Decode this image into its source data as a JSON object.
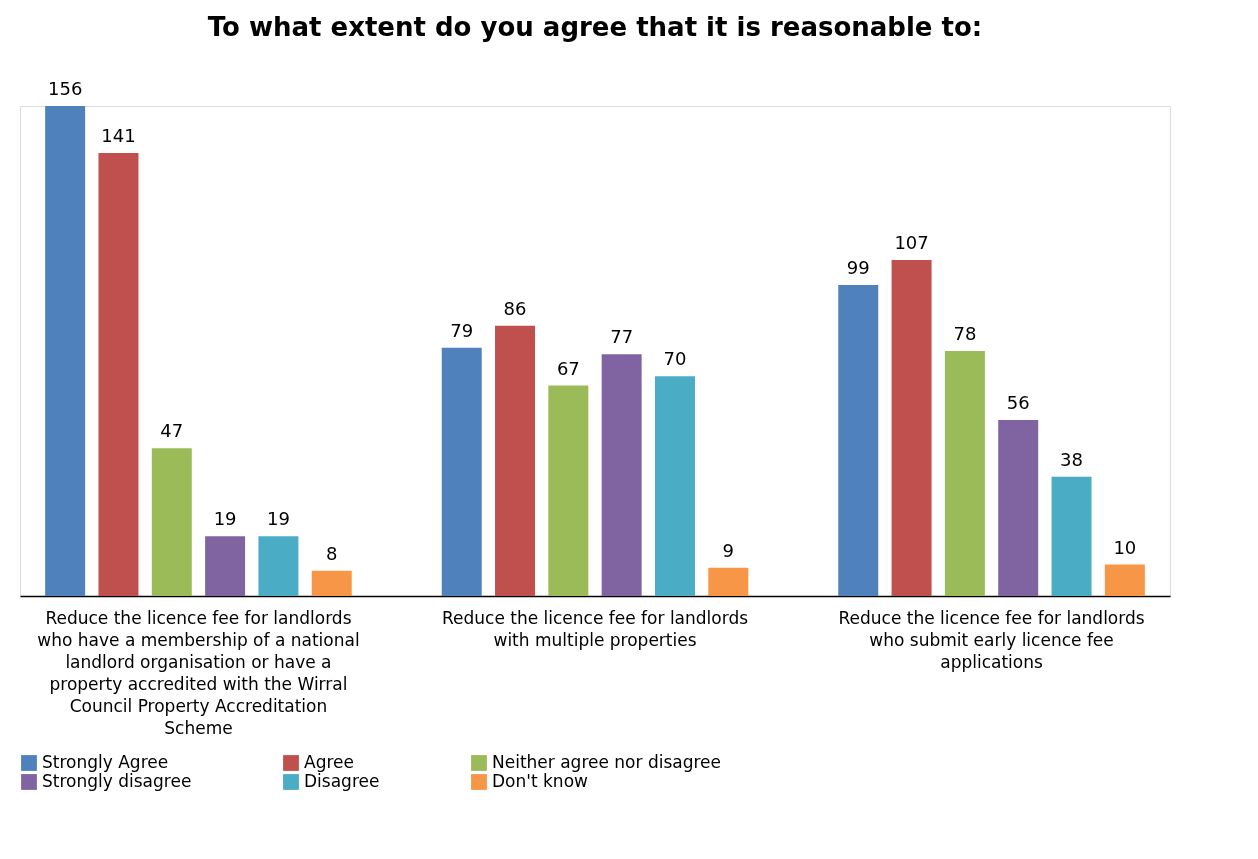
{
  "chart_data": {
    "type": "bar",
    "title": "To what extent do you agree that it is reasonable to:",
    "categories": [
      "Reduce the licence fee for landlords who have a membership of a national landlord organisation or have a property accredited with the Wirral Council Property Accreditation Scheme",
      "Reduce the licence fee for landlords with multiple properties",
      "Reduce the licence fee for landlords who submit early licence fee applications"
    ],
    "series": [
      {
        "name": "Strongly Agree",
        "color": "#4f81bd",
        "values": [
          156,
          79,
          99
        ]
      },
      {
        "name": "Agree",
        "color": "#c0504d",
        "values": [
          141,
          86,
          107
        ]
      },
      {
        "name": "Neither agree nor disagree",
        "color": "#9bbb59",
        "values": [
          47,
          67,
          78
        ]
      },
      {
        "name": "Strongly disagree",
        "color": "#8064a2",
        "values": [
          19,
          77,
          56
        ]
      },
      {
        "name": "Disagree",
        "color": "#4bacc6",
        "values": [
          19,
          70,
          38
        ]
      },
      {
        "name": "Don't know",
        "color": "#f79646",
        "values": [
          8,
          9,
          10
        ]
      }
    ],
    "data_labels": true,
    "legend": "bottom",
    "grid": false,
    "tick_labels": "x"
  }
}
